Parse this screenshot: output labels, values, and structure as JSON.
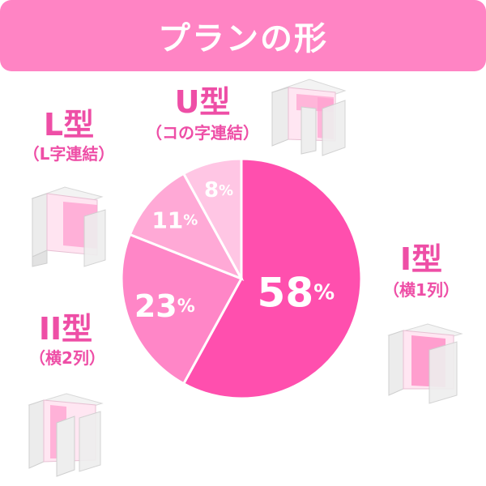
{
  "header": {
    "title": "プランの形"
  },
  "colors": {
    "banner": "#ff84c4",
    "label": "#ee4ea6",
    "slices": [
      "#ff4fae",
      "#ff86c7",
      "#ffa9d6",
      "#ffc6e4"
    ]
  },
  "chart_data": {
    "type": "pie",
    "title": "プランの形",
    "slices": [
      {
        "name": "I型",
        "value": 58,
        "label": "58"
      },
      {
        "name": "II型",
        "value": 23,
        "label": "23"
      },
      {
        "name": "L型",
        "value": 11,
        "label": "11"
      },
      {
        "name": "U型",
        "value": 8,
        "label": "8"
      }
    ],
    "unit": "%"
  },
  "plans": {
    "l": {
      "name": "L型",
      "sub": "（L字連結）",
      "icon": "l-shape-room-icon"
    },
    "u": {
      "name": "U型",
      "sub": "（コの字連結）",
      "icon": "u-shape-room-icon"
    },
    "i": {
      "name": "I型",
      "sub": "（横1列）",
      "icon": "i-shape-room-icon"
    },
    "ii": {
      "name": "II型",
      "sub": "（横2列）",
      "icon": "ii-shape-room-icon"
    }
  }
}
